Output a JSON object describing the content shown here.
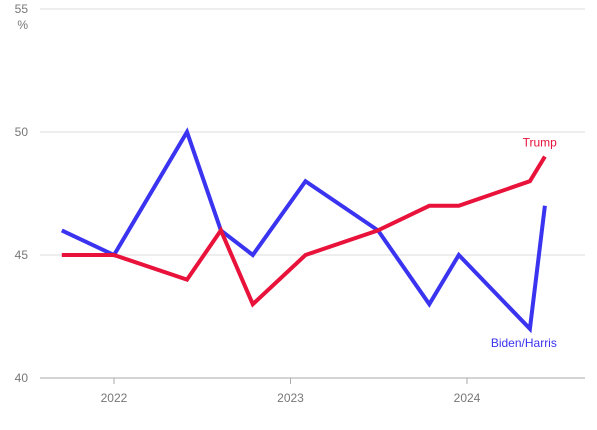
{
  "chart_data": {
    "type": "line",
    "unit": "%",
    "ylim": [
      40,
      55
    ],
    "yticks": [
      40,
      45,
      50,
      55
    ],
    "xlim": [
      "2021-08-01",
      "2024-09-01"
    ],
    "xticks": [
      {
        "date": "2022-01-01",
        "label": "2022"
      },
      {
        "date": "2023-01-01",
        "label": "2023"
      },
      {
        "date": "2024-01-01",
        "label": "2024"
      }
    ],
    "grid": true,
    "series": [
      {
        "name": "Biden/Harris",
        "color": "#3a33f0",
        "points": [
          {
            "date": "2021-09-15",
            "value": 46
          },
          {
            "date": "2022-01-01",
            "value": 45
          },
          {
            "date": "2022-06-01",
            "value": 50
          },
          {
            "date": "2022-08-10",
            "value": 46
          },
          {
            "date": "2022-10-15",
            "value": 45
          },
          {
            "date": "2023-02-01",
            "value": 48
          },
          {
            "date": "2023-07-01",
            "value": 46
          },
          {
            "date": "2023-10-15",
            "value": 43
          },
          {
            "date": "2023-12-15",
            "value": 45
          },
          {
            "date": "2024-05-10",
            "value": 42
          },
          {
            "date": "2024-06-10",
            "value": 47
          }
        ]
      },
      {
        "name": "Trump",
        "color": "#e8123a",
        "points": [
          {
            "date": "2021-09-15",
            "value": 45
          },
          {
            "date": "2022-01-01",
            "value": 45
          },
          {
            "date": "2022-06-01",
            "value": 44
          },
          {
            "date": "2022-08-10",
            "value": 46
          },
          {
            "date": "2022-10-15",
            "value": 43
          },
          {
            "date": "2023-02-01",
            "value": 45
          },
          {
            "date": "2023-07-01",
            "value": 46
          },
          {
            "date": "2023-10-15",
            "value": 47
          },
          {
            "date": "2023-12-15",
            "value": 47
          },
          {
            "date": "2024-05-10",
            "value": 48
          },
          {
            "date": "2024-06-10",
            "value": 49
          }
        ]
      }
    ]
  }
}
